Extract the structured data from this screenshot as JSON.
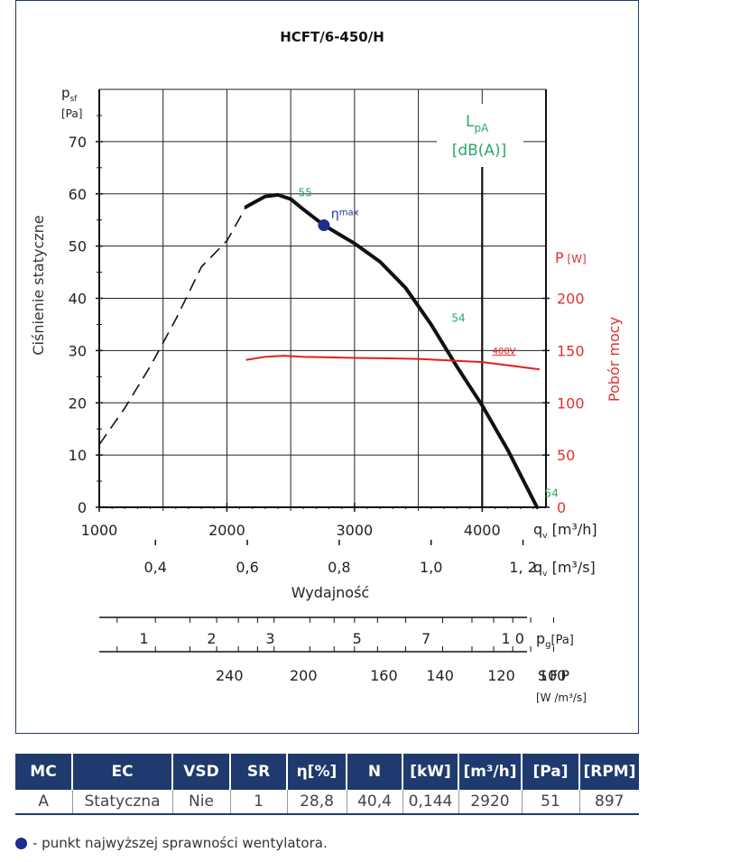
{
  "chart_data": {
    "type": "line",
    "title": "HCFT/6-450/H",
    "ylabel": "Ciśnienie statyczne",
    "ylabel_unit_symbol": "p",
    "ylabel_unit_sub": "sf",
    "ylabel_unit": "[Pa]",
    "y2label": "Pobór mocy",
    "y2_unit": "P",
    "y2_unit_bracket": "[W]",
    "xlabel": "Wydajność",
    "xlim": [
      1000,
      4500
    ],
    "ylim": [
      0,
      80
    ],
    "y2lim": [
      0,
      400
    ],
    "x_ticks": [
      "1000",
      "2000",
      "3000",
      "4000"
    ],
    "y_ticks": [
      "0",
      "10",
      "20",
      "30",
      "40",
      "50",
      "60",
      "70"
    ],
    "y2_ticks": [
      "0",
      "50",
      "100",
      "150",
      "200"
    ],
    "x_unit_q": "q",
    "x_unit_sub": "v",
    "x_unit_h": "[m³/h]",
    "x_unit_s": "[m³/s]",
    "ms_ticks": [
      {
        "v": 0.4,
        "label": "0,4"
      },
      {
        "v": 0.6,
        "label": "0,6"
      },
      {
        "v": 0.8,
        "label": "0,8"
      },
      {
        "v": 1.0,
        "label": "1,0"
      },
      {
        "v": 1.2,
        "label": "1, 2"
      }
    ],
    "pg_ticks": [
      {
        "x": 1350,
        "label": "1"
      },
      {
        "x": 1880,
        "label": "2"
      },
      {
        "x": 2340,
        "label": "3"
      },
      {
        "x": 3020,
        "label": "5"
      },
      {
        "x": 3560,
        "label": "7"
      },
      {
        "x": 4240,
        "label": "1 0"
      }
    ],
    "pg_unit": "p",
    "pg_unit_sub": "g",
    "pg_unit_bracket": "[Pa]",
    "sfp_ticks": [
      {
        "x": 2020,
        "label": "240"
      },
      {
        "x": 2600,
        "label": "200"
      },
      {
        "x": 3230,
        "label": "160"
      },
      {
        "x": 3670,
        "label": "140"
      },
      {
        "x": 4150,
        "label": "120"
      },
      {
        "x": 4550,
        "label": "100"
      }
    ],
    "sfp_label": "SFP",
    "sfp_unit": "[W /m³/s]",
    "lpa_label": "L",
    "lpa_sub": "pA",
    "lpa_unit": "[dB(A)]",
    "series": [
      {
        "name_hidden": "pressure_dashed",
        "color": "#111111",
        "x": [
          1000,
          1200,
          1400,
          1600,
          1800,
          2000,
          2150
        ],
        "y": [
          12,
          19,
          27,
          36,
          46,
          51,
          57.5
        ]
      },
      {
        "name_hidden": "pressure_solid",
        "color": "#111111",
        "x": [
          2150,
          2300,
          2400,
          2500,
          2600,
          2760,
          3000,
          3200,
          3400,
          3600,
          3800,
          4000,
          4200,
          4430
        ],
        "y": [
          57.5,
          59.5,
          59.8,
          59.0,
          57.0,
          54,
          50.5,
          47,
          42,
          35,
          27,
          19.5,
          11,
          0
        ]
      },
      {
        "name": "400V",
        "color": "#e02020",
        "axis": "y2",
        "x": [
          2150,
          2300,
          2450,
          2600,
          3000,
          3500,
          4000,
          4450
        ],
        "y": [
          141,
          144,
          145,
          144,
          143,
          142,
          139,
          132
        ]
      }
    ],
    "max_efficiency_point": {
      "x": 2760,
      "y": 54,
      "label": "η",
      "label_sup": "max"
    },
    "noise_labels": [
      {
        "x": 2560,
        "y": 59.5,
        "label": "55"
      },
      {
        "x": 3760,
        "y": 35.5,
        "label": "54"
      },
      {
        "x": 4490,
        "y": 2,
        "label": "54"
      }
    ],
    "vline_x": 4000
  },
  "table": {
    "headers": [
      "MC",
      "EC",
      "VSD",
      "SR",
      "η[%]",
      "N",
      "[kW]",
      "[m³/h]",
      "[Pa]",
      "[RPM]"
    ],
    "row": [
      "A",
      "Statyczna",
      "Nie",
      "1",
      "28,8",
      "40,4",
      "0,144",
      "2920",
      "51",
      "897"
    ]
  },
  "legend_text": "- punkt najwyższej sprawności wentylatora."
}
